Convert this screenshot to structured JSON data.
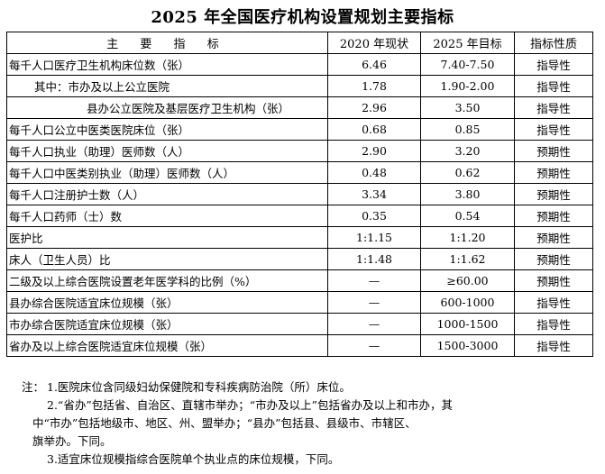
{
  "title": "2025 年全国医疗机构设置规划主要指标",
  "table": {
    "headers": [
      "主 要 指 标",
      "2020 年现状",
      "2025 年目标",
      "指标性质"
    ],
    "rows": [
      {
        "name": "每千人口医疗卫生机构床位数（张）",
        "current": "6.46",
        "target": "7.40-7.50",
        "nature": "指导性",
        "indent": 0
      },
      {
        "name": "其中：市办及以上公立医院",
        "current": "1.78",
        "target": "1.90-2.00",
        "nature": "指导性",
        "indent": 1
      },
      {
        "name": "县办公立医院及基层医疗卫生机构（张）",
        "current": "2.96",
        "target": "3.50",
        "nature": "指导性",
        "indent": 2
      },
      {
        "name": "每千人口公立中医类医院床位（张）",
        "current": "0.68",
        "target": "0.85",
        "nature": "指导性",
        "indent": 0
      },
      {
        "name": "每千人口执业（助理）医师数（人）",
        "current": "2.90",
        "target": "3.20",
        "nature": "预期性",
        "indent": 0
      },
      {
        "name": "每千人口中医类别执业（助理）医师数（人）",
        "current": "0.48",
        "target": "0.62",
        "nature": "预期性",
        "indent": 0
      },
      {
        "name": "每千人口注册护士数（人）",
        "current": "3.34",
        "target": "3.80",
        "nature": "预期性",
        "indent": 0
      },
      {
        "name": "每千人口药师（士）数",
        "current": "0.35",
        "target": "0.54",
        "nature": "预期性",
        "indent": 0
      },
      {
        "name": "医护比",
        "current": "1:1.15",
        "target": "1:1.20",
        "nature": "预期性",
        "indent": 0
      },
      {
        "name": "床人（卫生人员）比",
        "current": "1:1.48",
        "target": "1:1.62",
        "nature": "预期性",
        "indent": 0
      },
      {
        "name": "二级及以上综合医院设置老年医学科的比例（%）",
        "current": "—",
        "target": "≥60.00",
        "nature": "预期性",
        "indent": 0
      },
      {
        "name": "县办综合医院适宜床位规模（张）",
        "current": "—",
        "target": "600-1000",
        "nature": "指导性",
        "indent": 0
      },
      {
        "name": "市办综合医院适宜床位规模（张）",
        "current": "—",
        "target": "1000-1500",
        "nature": "指导性",
        "indent": 0
      },
      {
        "name": "省办及以上综合医院适宜床位规模（张）",
        "current": "—",
        "target": "1500-3000",
        "nature": "指导性",
        "indent": 0
      }
    ]
  },
  "notes": {
    "prefix": "注：",
    "line1": "1.医院床位含同级妇幼保健院和专科疾病防治院（所）床位。",
    "line2a": "2.“省办”包括省、自治区、直辖市举办；“市办及以上”包括省办及以上和市办，其",
    "line2b": "中“市办”包括地级市、地区、州、盟举办；“县办”包括县、县级市、市辖区、",
    "line2c": "旗举办。下同。",
    "line3": "3.适宜床位规模指综合医院单个执业点的床位规模，下同。"
  }
}
